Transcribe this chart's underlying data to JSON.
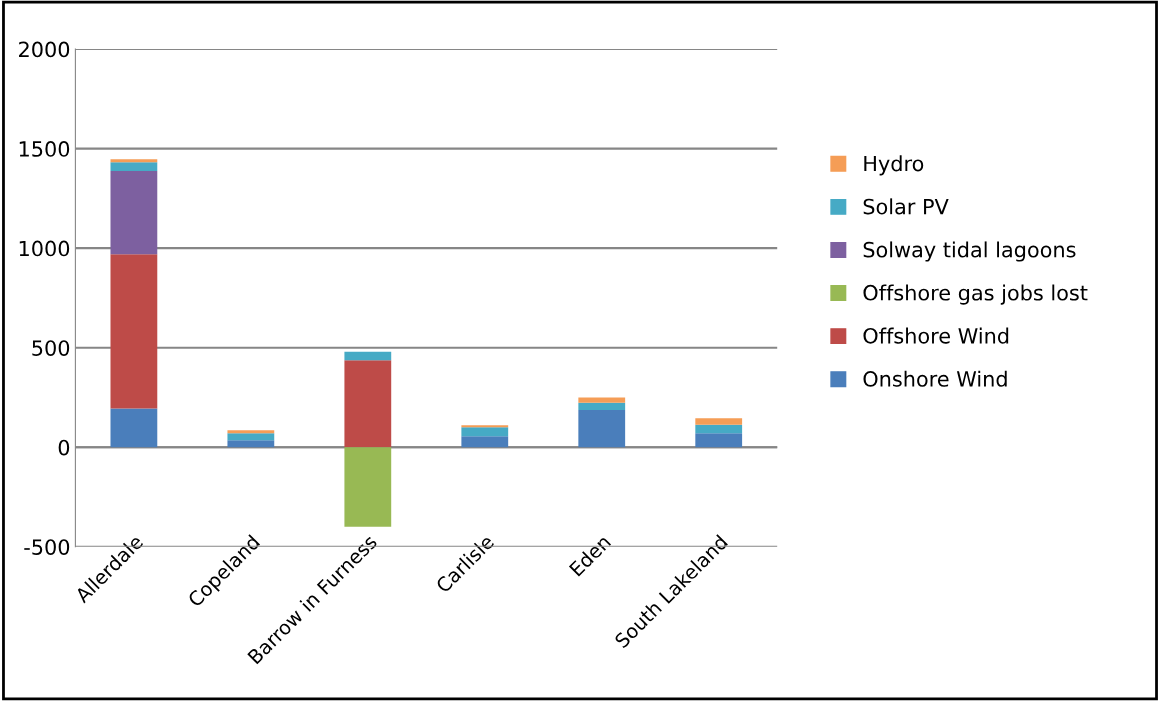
{
  "chart_data": {
    "type": "bar",
    "stacked": true,
    "categories": [
      "Allerdale",
      "Copeland",
      "Barrow in Furness",
      "Carlisle",
      "Eden",
      "South Lakeland"
    ],
    "series": [
      {
        "name": "Onshore Wind",
        "color": "#4a7ebb",
        "values": [
          195,
          35,
          0,
          55,
          187,
          70
        ]
      },
      {
        "name": "Offshore Wind",
        "color": "#be4b48",
        "values": [
          775,
          0,
          437,
          0,
          0,
          0
        ]
      },
      {
        "name": "Offshore gas jobs lost",
        "color": "#98b954",
        "values": [
          0,
          0,
          -400,
          0,
          0,
          0
        ]
      },
      {
        "name": "Solway tidal lagoons",
        "color": "#7d60a0",
        "values": [
          418,
          0,
          0,
          0,
          0,
          0
        ]
      },
      {
        "name": "Solar PV",
        "color": "#46aac5",
        "values": [
          43,
          35,
          43,
          45,
          36,
          43
        ]
      },
      {
        "name": "Hydro",
        "color": "#f59d56",
        "values": [
          16,
          15,
          0,
          10,
          27,
          33
        ]
      }
    ],
    "ylim": [
      -500,
      2000
    ],
    "yticks": [
      -500,
      0,
      500,
      1000,
      1500,
      2000
    ],
    "grid": "y",
    "legend": "right"
  }
}
